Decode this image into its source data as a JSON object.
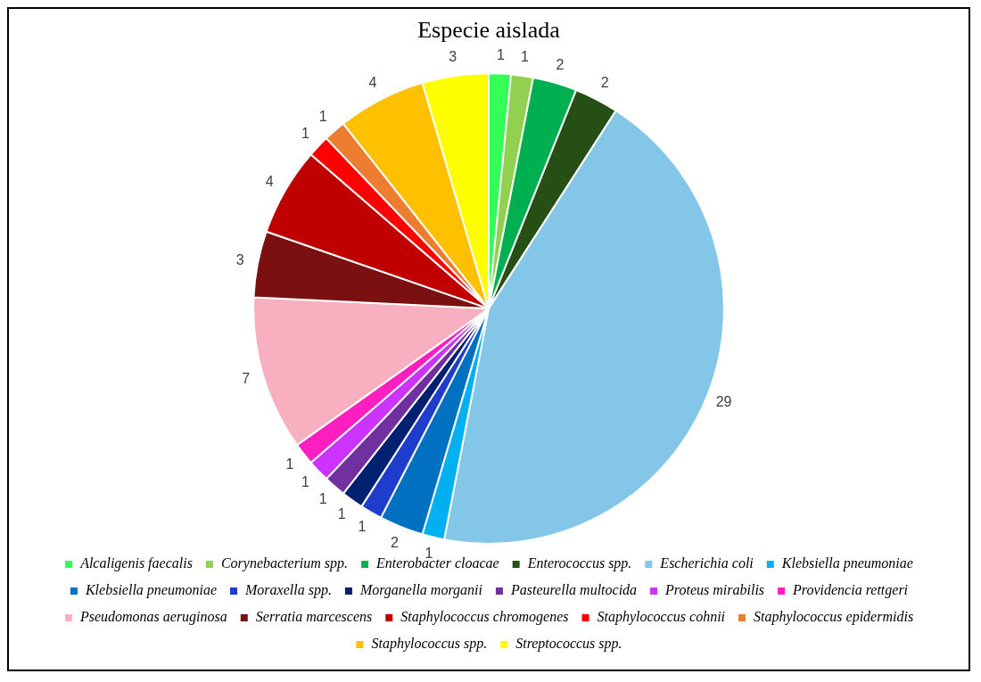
{
  "chart_data": {
    "type": "pie",
    "title": "Especie aislada",
    "categories": [
      "Alcaligenis faecalis",
      "Corynebacterium spp.",
      "Enterobacter cloacae",
      "Enterococcus spp.",
      "Escherichia coli",
      "Klebsiella pneumoniae",
      "Klebsiella pneumoniae",
      "Moraxella spp.",
      "Morganella morganii",
      "Pasteurella multocida",
      "Proteus mirabilis",
      "Providencia rettgeri",
      "Pseudomonas aeruginosa",
      "Serratia marcescens",
      "Staphylococcus chromogenes",
      "Staphylococcus cohnii",
      "Staphylococcus epidermidis",
      "Staphylococcus spp.",
      "Streptococcus spp."
    ],
    "values": [
      1,
      1,
      2,
      2,
      29,
      1,
      2,
      1,
      1,
      1,
      1,
      1,
      7,
      3,
      4,
      1,
      1,
      4,
      3
    ],
    "colors": [
      "#33ff57",
      "#92d050",
      "#00b050",
      "#254f14",
      "#84c6e8",
      "#00b0f0",
      "#0070c0",
      "#1f3dcc",
      "#002070",
      "#7030a0",
      "#cc33ff",
      "#ff1fc0",
      "#f8b0c0",
      "#7b1010",
      "#c00000",
      "#ff0000",
      "#ed7d31",
      "#ffc000",
      "#ffff00"
    ],
    "data_labels": true,
    "legend": "bottom"
  }
}
